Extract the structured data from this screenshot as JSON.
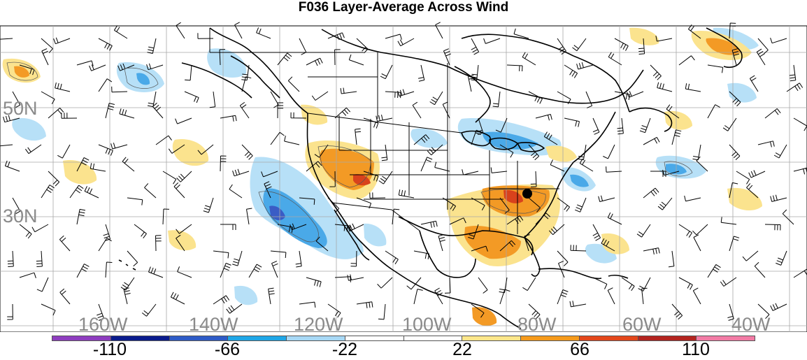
{
  "title": "F036 Layer-Average Across Wind",
  "latitude_labels": [
    "50N",
    "30N"
  ],
  "longitude_labels": [
    "160W",
    "140W",
    "120W",
    "100W",
    "80W",
    "60W",
    "40W"
  ],
  "colorbar": {
    "colors": [
      "#8e3dbf",
      "#0a1b8c",
      "#2e5bc6",
      "#1fa6e6",
      "#a7d8f5",
      "#ffffff",
      "#ffffff",
      "#fde68a",
      "#f59a1b",
      "#e3471b",
      "#b3241f",
      "#f27ba5"
    ],
    "labels": [
      "-110",
      "-66",
      "-22",
      "22",
      "66",
      "110"
    ]
  },
  "legend_colors": {
    "light_blue": "#b7e0f7",
    "mid_blue": "#4aa9e8",
    "dark_blue": "#3a5cc5",
    "light_orange": "#fbe38e",
    "orange": "#f39a25",
    "red": "#d8421c"
  },
  "markers": [
    {
      "name": "station-dot"
    }
  ]
}
